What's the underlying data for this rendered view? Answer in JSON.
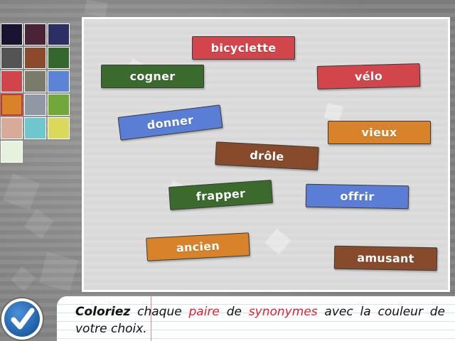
{
  "palette": {
    "colors": [
      "#1a1330",
      "#4a2338",
      "#2c2f63",
      "#545454",
      "#8a4a2b",
      "#33672b",
      "#d2444b",
      "#7b7b6b",
      "#5b83d6",
      "#d8822a",
      "#8f98a3",
      "#72a83a",
      "#d7ab98",
      "#6ec6cf",
      "#dad95c",
      "#e6f3dc"
    ],
    "selected_index": 9
  },
  "board": {
    "words": [
      {
        "text": "bicyclette",
        "color": "red"
      },
      {
        "text": "cogner",
        "color": "green"
      },
      {
        "text": "vélo",
        "color": "red"
      },
      {
        "text": "donner",
        "color": "blue"
      },
      {
        "text": "vieux",
        "color": "orange"
      },
      {
        "text": "drôle",
        "color": "brown"
      },
      {
        "text": "frapper",
        "color": "green"
      },
      {
        "text": "offrir",
        "color": "blue"
      },
      {
        "text": "ancien",
        "color": "orange"
      },
      {
        "text": "amusant",
        "color": "brown"
      }
    ]
  },
  "check_button": {
    "icon": "checkmark-icon"
  },
  "instruction": {
    "bold": "Coloriez",
    "part1": " chaque ",
    "hl1": "paire",
    "part2": " de ",
    "hl2": "synonymes",
    "part3": " avec la couleur de votre choix."
  }
}
